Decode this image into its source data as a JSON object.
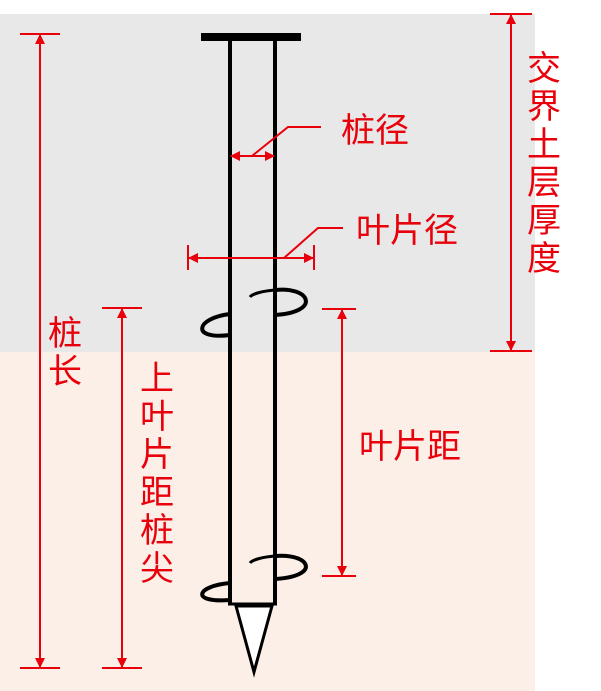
{
  "colors": {
    "annotation": "#e8000b",
    "pile": "#000000",
    "upper_layer_bg": "#e8e8e8",
    "lower_layer_bg": "#fcefe8"
  },
  "labels": {
    "pile_diameter": "桩径",
    "blade_diameter": "叶片径",
    "pile_length": "桩长",
    "upper_blade_to_tip": "上叶片距桩尖",
    "blade_spacing": "叶片距",
    "interface_soil_thickness": "交界土层厚度"
  }
}
